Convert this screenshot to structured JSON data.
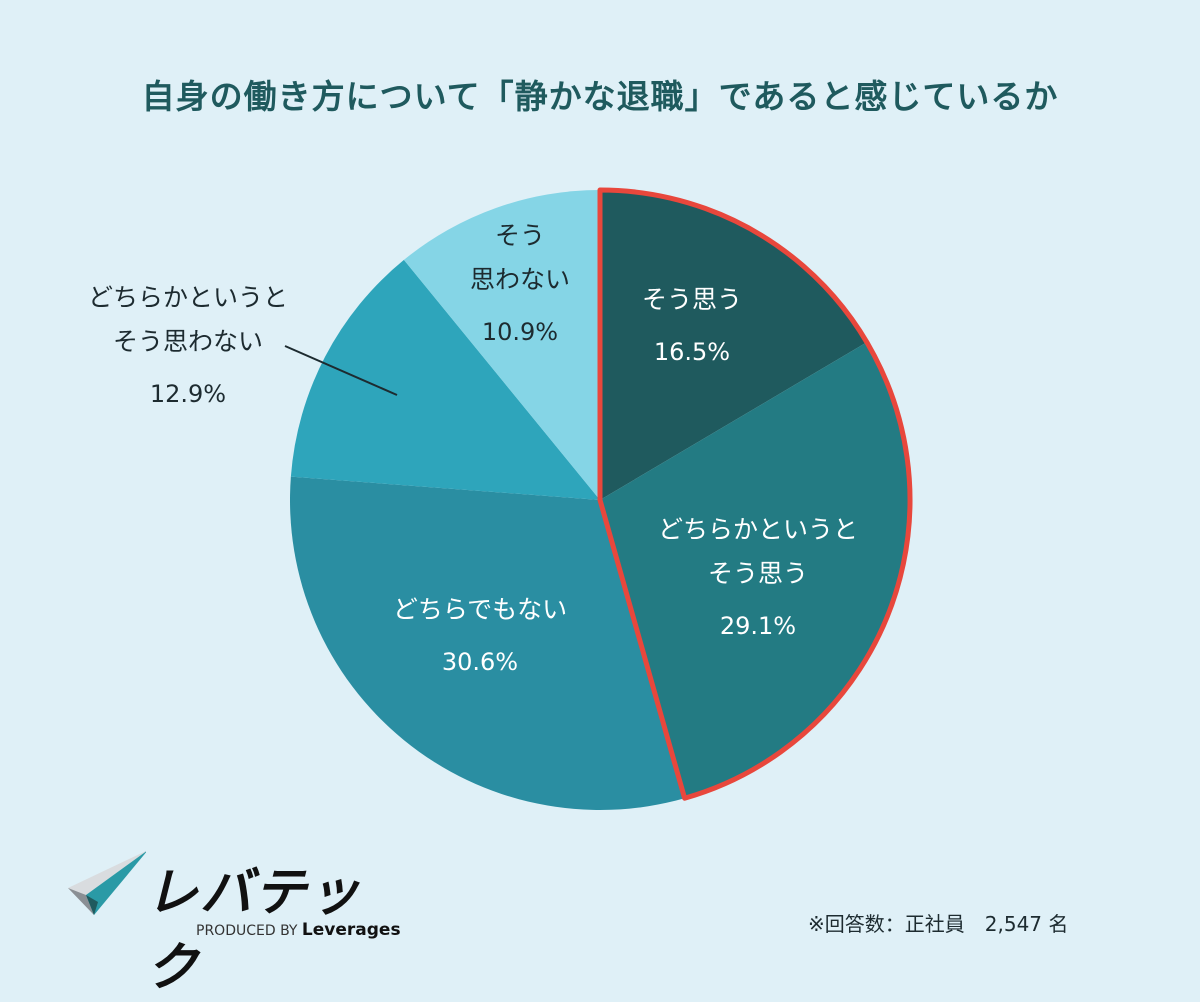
{
  "title": "自身の働き方について「静かな退職」であると感じているか",
  "chart_data": {
    "type": "pie",
    "title": "自身の働き方について「静かな退職」であると感じているか",
    "start": "top",
    "direction": "clockwise",
    "slices": [
      {
        "label": "そう思う",
        "value": 16.5,
        "display": "16.5%",
        "color": "#1f5a5e"
      },
      {
        "label": "どちらかというと\nそう思う",
        "value": 29.1,
        "display": "29.1%",
        "color": "#237b83"
      },
      {
        "label": "どちらでもない",
        "value": 30.6,
        "display": "30.6%",
        "color": "#2a8ea2"
      },
      {
        "label": "どちらかというと\nそう思わない",
        "value": 12.9,
        "display": "12.9%",
        "color": "#2ea5bb"
      },
      {
        "label": "そう\n思わない",
        "value": 10.9,
        "display": "10.9%",
        "color": "#85d5e6"
      }
    ],
    "highlight": {
      "slices": [
        0,
        1
      ],
      "outline_color": "#e8473c"
    }
  },
  "note": "※回答数：正社員　2,547 名",
  "logo": {
    "name": "レバテック",
    "sub_prefix": "PRODUCED BY",
    "sub_brand": "Leverages"
  }
}
